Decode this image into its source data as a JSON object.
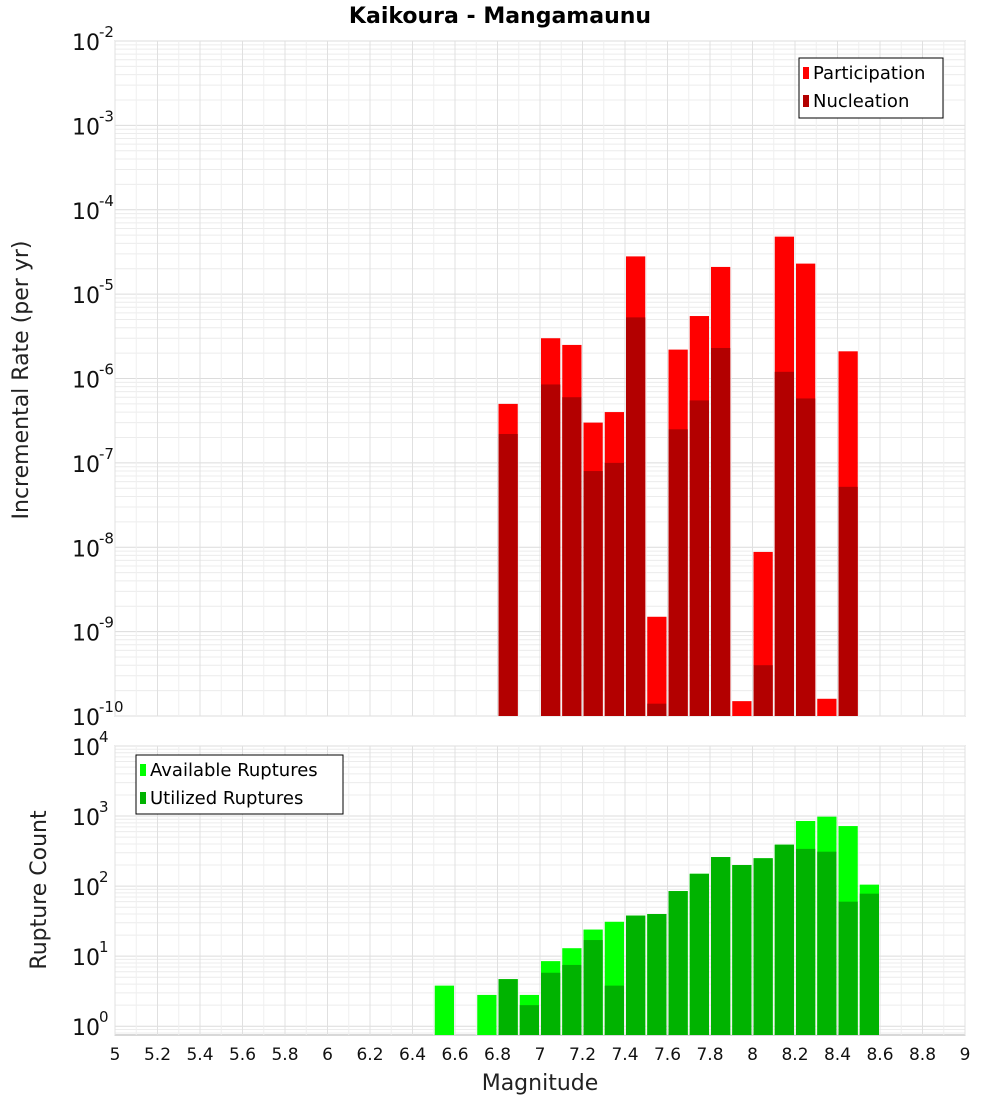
{
  "chart_data": [
    {
      "type": "bar",
      "title": "Kaikoura - Mangamaunu",
      "ylabel": "Incremental Rate (per yr)",
      "xlabel": "",
      "yscale": "log",
      "ylim": [
        1e-10,
        0.01
      ],
      "xlim": [
        5,
        9
      ],
      "grid": true,
      "legend_position": "top-right",
      "y_ticks": [
        {
          "base": "10",
          "exp": "-10",
          "value": 1e-10
        },
        {
          "base": "10",
          "exp": "-9",
          "value": 1e-09
        },
        {
          "base": "10",
          "exp": "-8",
          "value": 1e-08
        },
        {
          "base": "10",
          "exp": "-7",
          "value": 1e-07
        },
        {
          "base": "10",
          "exp": "-6",
          "value": 1e-06
        },
        {
          "base": "10",
          "exp": "-5",
          "value": 1e-05
        },
        {
          "base": "10",
          "exp": "-4",
          "value": 0.0001
        },
        {
          "base": "10",
          "exp": "-3",
          "value": 0.001
        },
        {
          "base": "10",
          "exp": "-2",
          "value": 0.01
        }
      ],
      "x": [
        6.85,
        7.05,
        7.15,
        7.25,
        7.35,
        7.45,
        7.55,
        7.65,
        7.75,
        7.85,
        7.95,
        8.05,
        8.15,
        8.25,
        8.35,
        8.45
      ],
      "series": [
        {
          "name": "Participation",
          "color": "#ff0000",
          "values": [
            5e-07,
            3e-06,
            2.5e-06,
            3e-07,
            4e-07,
            2.8e-05,
            1.5e-09,
            2.2e-06,
            5.5e-06,
            2.1e-05,
            1.5e-10,
            8.8e-09,
            4.8e-05,
            2.3e-05,
            1.6e-10,
            2.1e-06
          ]
        },
        {
          "name": "Nucleation",
          "color": "#b30000",
          "values": [
            2.2e-07,
            8.5e-07,
            6e-07,
            8e-08,
            1e-07,
            5.3e-06,
            1.4e-10,
            2.5e-07,
            5.5e-07,
            2.3e-06,
            null,
            4e-10,
            1.2e-06,
            5.8e-07,
            null,
            5.2e-08
          ]
        }
      ]
    },
    {
      "type": "bar",
      "title": "",
      "ylabel": "Rupture Count",
      "xlabel": "Magnitude",
      "yscale": "log",
      "ylim": [
        0.75,
        10000
      ],
      "xlim": [
        5,
        9
      ],
      "grid": true,
      "legend_position": "top-left",
      "y_ticks": [
        {
          "base": "10",
          "exp": "0",
          "value": 1
        },
        {
          "base": "10",
          "exp": "1",
          "value": 10
        },
        {
          "base": "10",
          "exp": "2",
          "value": 100
        },
        {
          "base": "10",
          "exp": "3",
          "value": 1000
        },
        {
          "base": "10",
          "exp": "4",
          "value": 10000
        }
      ],
      "x_tick_labels": [
        "5",
        "5.2",
        "5.4",
        "5.6",
        "5.8",
        "6",
        "6.2",
        "6.4",
        "6.6",
        "6.8",
        "7",
        "7.2",
        "7.4",
        "7.6",
        "7.8",
        "8",
        "8.2",
        "8.4",
        "8.6",
        "8.8",
        "9"
      ],
      "x": [
        6.55,
        6.75,
        6.85,
        6.95,
        7.05,
        7.15,
        7.25,
        7.35,
        7.45,
        7.55,
        7.65,
        7.75,
        7.85,
        7.95,
        8.05,
        8.15,
        8.25,
        8.35,
        8.45,
        8.55
      ],
      "series": [
        {
          "name": "Available Ruptures",
          "color": "#00ff00",
          "values": [
            3.8,
            2.8,
            4.7,
            2.8,
            8.5,
            13,
            24,
            31,
            38,
            40,
            85,
            150,
            260,
            200,
            250,
            390,
            850,
            980,
            720,
            105
          ]
        },
        {
          "name": "Utilized Ruptures",
          "color": "#00b300",
          "values": [
            null,
            null,
            4.7,
            2.0,
            5.8,
            7.5,
            17,
            3.8,
            38,
            40,
            85,
            150,
            260,
            200,
            250,
            390,
            340,
            310,
            60,
            78
          ]
        }
      ]
    }
  ]
}
